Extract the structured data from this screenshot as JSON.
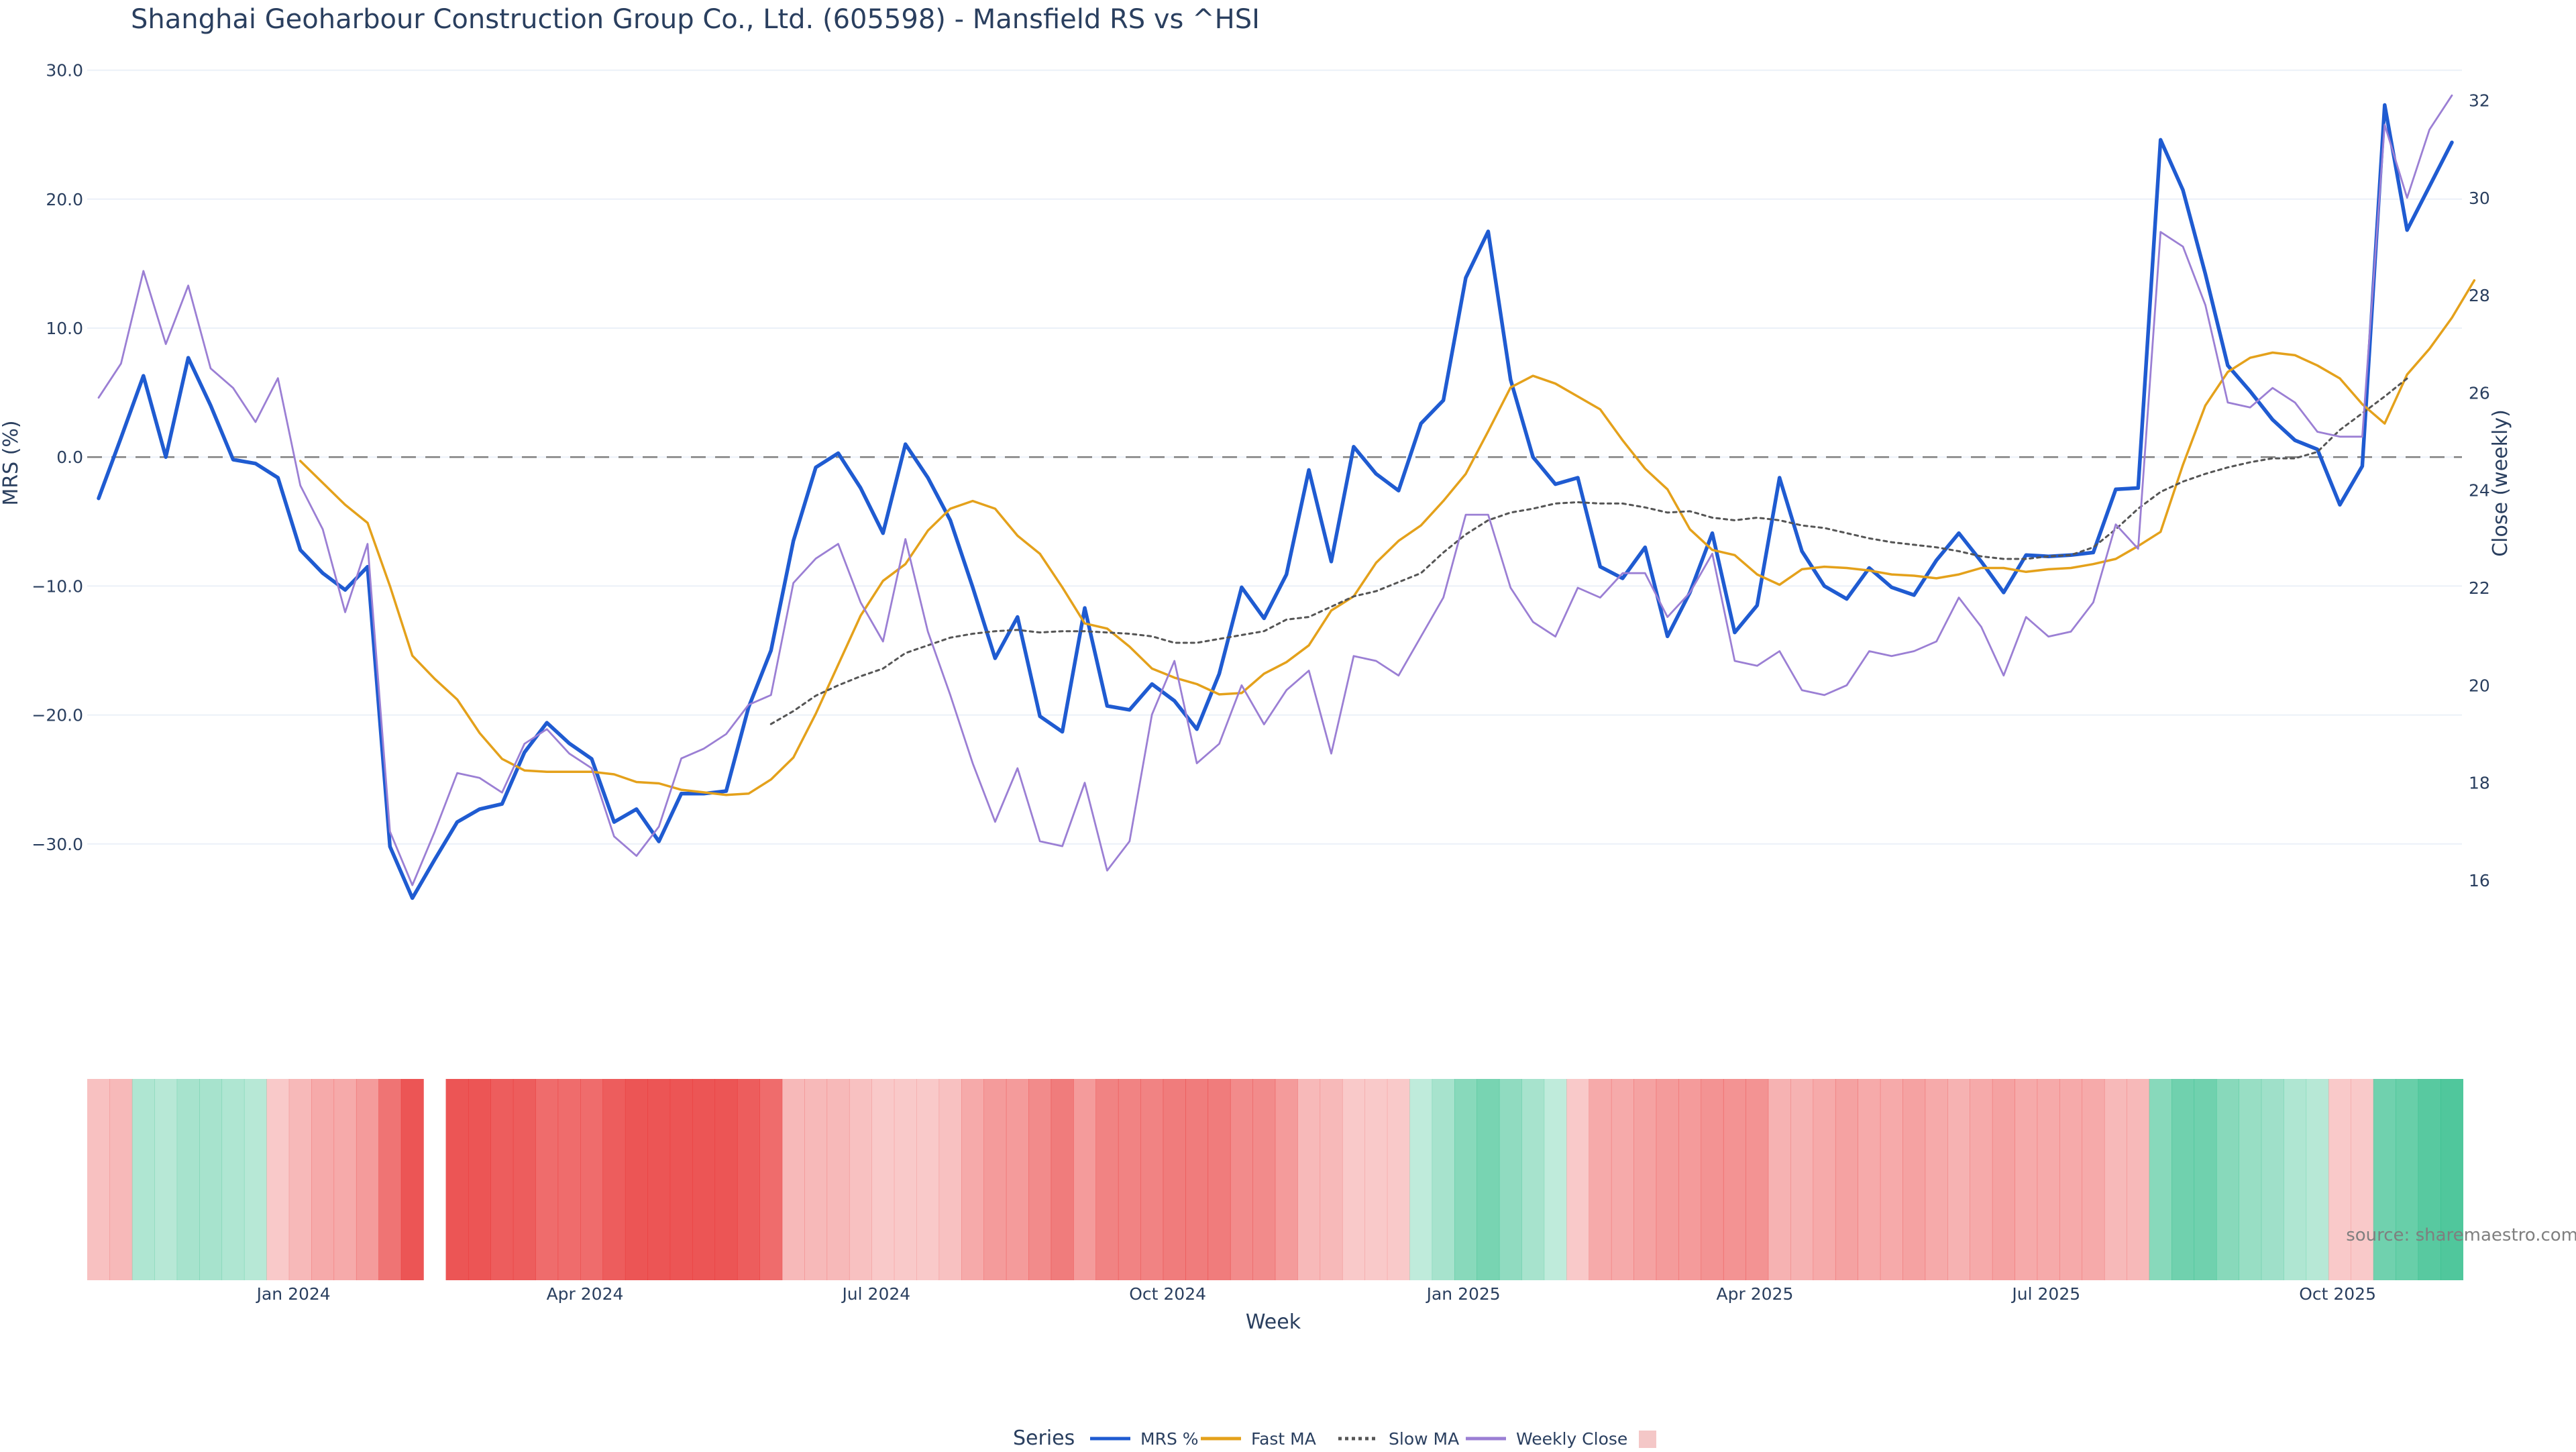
{
  "chart_data": {
    "type": "line",
    "title": "Shanghai Geoharbour Construction Group Co., Ltd. (605598) - Mansfield RS vs ^HSI",
    "xlabel": "Week",
    "ylabel": "MRS (%)",
    "y2label": "Close (weekly)",
    "ylim": [
      -40,
      30.5
    ],
    "y2lim": [
      14.1,
      32.75
    ],
    "yticks": [
      30,
      20,
      10,
      0,
      -10,
      -20,
      -30
    ],
    "ytick_labels": [
      "30.0",
      "20.0",
      "10.0",
      "0.0",
      "−10.0",
      "−20.0",
      "−30.0"
    ],
    "y2ticks": [
      32,
      30,
      28,
      26,
      24,
      22,
      20,
      18,
      16
    ],
    "y2tick_labels": [
      "32",
      "30",
      "28",
      "26",
      "24",
      "22",
      "20",
      "18",
      "16"
    ],
    "xtick_labels": [
      "Jan 2024",
      "Apr 2024",
      "Jul 2024",
      "Oct 2024",
      "Jan 2025",
      "Apr 2025",
      "Jul 2025",
      "Oct 2025"
    ],
    "xtick_weeks": [
      8.7,
      21.7,
      34.7,
      47.7,
      60.9,
      73.9,
      86.9,
      99.9
    ],
    "zero_line": 0,
    "series": [
      {
        "name": "MRS %",
        "color": "#1f5bd1",
        "axis": "left",
        "start": 0,
        "values": [
          -3.2,
          1.5,
          6.3,
          0.0,
          7.7,
          4.0,
          -0.2,
          -0.5,
          -1.6,
          -7.2,
          -9.0,
          -10.3,
          -8.5,
          -30.2,
          -34.2,
          -31.2,
          -28.3,
          -27.3,
          -26.9,
          -22.9,
          -20.6,
          -22.2,
          -23.4,
          -28.3,
          -27.3,
          -29.8,
          -26.1,
          -26.1,
          -25.9,
          -19.4,
          -15.0,
          -6.5,
          -0.8,
          0.3,
          -2.4,
          -5.9,
          1.0,
          -1.6,
          -4.9,
          -10.1,
          -15.6,
          -12.4,
          -20.1,
          -21.3,
          -11.7,
          -19.3,
          -19.6,
          -17.6,
          -18.9,
          -21.1,
          -16.8,
          -10.1,
          -12.5,
          -9.1,
          -1.0,
          -8.1,
          0.8,
          -1.3,
          -2.6,
          2.6,
          4.4,
          13.9,
          17.5,
          6.0,
          0.0,
          -2.1,
          -1.6,
          -8.5,
          -9.4,
          -7.0,
          -13.9,
          -10.5,
          -5.9,
          -13.6,
          -11.5,
          -1.6,
          -7.3,
          -10.0,
          -11.0,
          -8.6,
          -10.1,
          -10.7,
          -8.0,
          -5.9,
          -8.1,
          -10.5,
          -7.6,
          -7.7,
          -7.6,
          -7.4,
          -2.5,
          -2.4,
          24.6,
          20.7,
          14.2,
          7.1,
          5.1,
          2.9,
          1.3,
          0.6,
          -3.7,
          -0.7,
          27.3,
          17.6,
          21.0,
          24.4
        ]
      },
      {
        "name": "Fast MA",
        "color": "#e4a11b",
        "axis": "left",
        "start": 9,
        "values": [
          -0.3,
          -2.0,
          -3.7,
          -5.1,
          -10.0,
          -15.4,
          -17.2,
          -18.8,
          -21.4,
          -23.4,
          -24.3,
          -24.4,
          -24.4,
          -24.4,
          -24.6,
          -25.2,
          -25.3,
          -25.8,
          -26.0,
          -26.2,
          -26.1,
          -25.0,
          -23.3,
          -19.9,
          -16.1,
          -12.3,
          -9.6,
          -8.3,
          -5.7,
          -4.0,
          -3.4,
          -4.0,
          -6.1,
          -7.5,
          -10.1,
          -12.9,
          -13.3,
          -14.7,
          -16.4,
          -17.1,
          -17.6,
          -18.4,
          -18.3,
          -16.8,
          -15.9,
          -14.6,
          -11.9,
          -10.8,
          -8.2,
          -6.5,
          -5.3,
          -3.4,
          -1.3,
          2.0,
          5.4,
          6.3,
          5.7,
          4.7,
          3.7,
          1.3,
          -0.9,
          -2.5,
          -5.6,
          -7.2,
          -7.6,
          -9.1,
          -9.9,
          -8.7,
          -8.5,
          -8.6,
          -8.8,
          -9.1,
          -9.2,
          -9.4,
          -9.1,
          -8.6,
          -8.6,
          -8.9,
          -8.7,
          -8.6,
          -8.3,
          -7.9,
          -6.9,
          -5.8,
          -0.6,
          4.0,
          6.6,
          7.7,
          8.1,
          7.9,
          7.1,
          6.1,
          4.1,
          2.6,
          6.4,
          8.4,
          10.8,
          13.7
        ]
      },
      {
        "name": "Slow MA",
        "color": "#555555",
        "axis": "left",
        "dash": true,
        "start": 30,
        "values": [
          -20.7,
          -19.7,
          -18.5,
          -17.7,
          -17.0,
          -16.4,
          -15.2,
          -14.6,
          -14.0,
          -13.7,
          -13.5,
          -13.4,
          -13.6,
          -13.5,
          -13.5,
          -13.6,
          -13.7,
          -13.9,
          -14.4,
          -14.4,
          -14.1,
          -13.8,
          -13.5,
          -12.6,
          -12.4,
          -11.6,
          -10.8,
          -10.4,
          -9.7,
          -9.0,
          -7.4,
          -6.0,
          -4.9,
          -4.3,
          -4.0,
          -3.6,
          -3.5,
          -3.6,
          -3.6,
          -3.9,
          -4.3,
          -4.2,
          -4.7,
          -4.9,
          -4.7,
          -4.9,
          -5.3,
          -5.5,
          -5.9,
          -6.3,
          -6.6,
          -6.8,
          -7.0,
          -7.3,
          -7.7,
          -7.9,
          -7.9,
          -7.7,
          -7.6,
          -7.0,
          -5.6,
          -4.0,
          -2.7,
          -1.9,
          -1.3,
          -0.8,
          -0.4,
          -0.1,
          -0.1,
          0.4,
          2.1,
          3.4,
          4.7,
          6.1
        ]
      },
      {
        "name": "Weekly Close",
        "color": "#9b7fd4",
        "axis": "right",
        "start": 0,
        "values": [
          25.9,
          26.6,
          28.5,
          27.0,
          28.2,
          26.5,
          26.1,
          25.4,
          26.3,
          24.1,
          23.2,
          21.5,
          22.9,
          17.0,
          15.9,
          17.0,
          18.2,
          18.1,
          17.8,
          18.8,
          19.1,
          18.6,
          18.3,
          16.9,
          16.5,
          17.1,
          18.5,
          18.7,
          19.0,
          19.6,
          19.8,
          22.1,
          22.6,
          22.9,
          21.7,
          20.9,
          23.0,
          21.1,
          19.8,
          18.4,
          17.2,
          18.3,
          16.8,
          16.7,
          18.0,
          16.2,
          16.8,
          19.4,
          20.5,
          18.4,
          18.8,
          20.0,
          19.2,
          19.9,
          20.3,
          18.6,
          20.6,
          20.5,
          20.2,
          21.0,
          21.8,
          23.5,
          23.5,
          22.0,
          21.3,
          21.0,
          22.0,
          21.8,
          22.3,
          22.3,
          21.4,
          21.9,
          22.7,
          20.5,
          20.4,
          20.7,
          19.9,
          19.8,
          20.0,
          20.7,
          20.6,
          20.7,
          20.9,
          21.8,
          21.2,
          20.2,
          21.4,
          21.0,
          21.1,
          21.7,
          23.3,
          22.8,
          29.3,
          29.0,
          27.8,
          25.8,
          25.7,
          26.1,
          25.8,
          25.2,
          25.1,
          25.1,
          31.5,
          30.0,
          31.4,
          32.1
        ]
      }
    ],
    "heatmap_cells": [
      -0.25,
      -0.3,
      0.35,
      0.3,
      0.4,
      0.4,
      0.35,
      0.3,
      -0.2,
      -0.3,
      -0.4,
      -0.4,
      -0.5,
      -0.75,
      -0.95,
      null,
      -0.95,
      -0.95,
      -0.9,
      -0.9,
      -0.8,
      -0.8,
      -0.8,
      -0.9,
      -0.95,
      -0.95,
      -0.95,
      -0.95,
      -0.95,
      -0.9,
      -0.8,
      -0.3,
      -0.3,
      -0.3,
      -0.25,
      -0.2,
      -0.2,
      -0.2,
      -0.25,
      -0.4,
      -0.5,
      -0.5,
      -0.6,
      -0.7,
      -0.5,
      -0.65,
      -0.65,
      -0.65,
      -0.7,
      -0.7,
      -0.7,
      -0.6,
      -0.6,
      -0.5,
      -0.3,
      -0.3,
      -0.2,
      -0.2,
      -0.2,
      0.25,
      0.4,
      0.6,
      0.7,
      0.55,
      0.4,
      0.25,
      -0.2,
      -0.4,
      -0.4,
      -0.45,
      -0.5,
      -0.5,
      -0.55,
      -0.55,
      -0.55,
      -0.35,
      -0.35,
      -0.4,
      -0.45,
      -0.4,
      -0.4,
      -0.45,
      -0.4,
      -0.35,
      -0.4,
      -0.45,
      -0.4,
      -0.4,
      -0.4,
      -0.4,
      -0.3,
      -0.3,
      0.6,
      0.75,
      0.75,
      0.6,
      0.5,
      0.45,
      0.35,
      0.3,
      -0.2,
      -0.2,
      0.75,
      0.8,
      0.9,
      0.95
    ],
    "legend_title": "Series",
    "legend": [
      "MRS %",
      "Fast MA",
      "Slow MA",
      "Weekly Close",
      ""
    ],
    "legend_colors": [
      "#1f5bd1",
      "#e4a11b",
      "#555555",
      "#9b7fd4",
      "#f4c7c7"
    ],
    "legend_position": "bottom-center",
    "source_note": "source: sharemaestro.com"
  }
}
